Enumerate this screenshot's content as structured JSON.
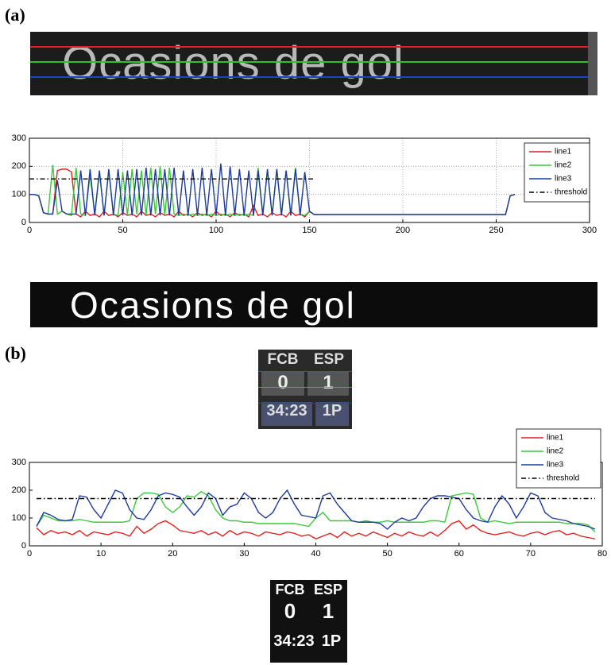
{
  "panels": {
    "label_a": "(a)",
    "label_b": "(b)",
    "image_a_top": "Ocasions de gol",
    "image_a_bottom": "Ocasions de gol",
    "score_top": {
      "team1": "FCB",
      "team2": "ESP",
      "score1": "0",
      "score2": "1",
      "time": "34:23",
      "period": "1P"
    },
    "score_bottom": {
      "team1": "FCB",
      "team2": "ESP",
      "score1": "0",
      "score2": "1",
      "time": "34:23",
      "period": "1P"
    }
  },
  "chart_data": [
    {
      "type": "line",
      "grid": true,
      "xlim": [
        0,
        300
      ],
      "xticks": [
        0,
        50,
        100,
        150,
        200,
        250,
        300
      ],
      "ylim": [
        0,
        300
      ],
      "yticks": [
        0,
        100,
        200,
        300
      ],
      "x": [
        0,
        2.5,
        5,
        7.5,
        10,
        12.5,
        15,
        17.5,
        20,
        22.5,
        25,
        27.5,
        30,
        32.5,
        35,
        37.5,
        40,
        42.5,
        45,
        47.5,
        50,
        52.5,
        55,
        57.5,
        60,
        62.5,
        65,
        67.5,
        70,
        72.5,
        75,
        77.5,
        80,
        82.5,
        85,
        87.5,
        90,
        92.5,
        95,
        97.5,
        100,
        102.5,
        105,
        107.5,
        110,
        112.5,
        115,
        117.5,
        120,
        122.5,
        125,
        127.5,
        130,
        132.5,
        135,
        137.5,
        140,
        142.5,
        145,
        147.5,
        150,
        152.5,
        155,
        200,
        255,
        257.5,
        260
      ],
      "series": [
        {
          "name": "line1",
          "color": "#e0201b",
          "values": [
            100,
            100,
            95,
            35,
            30,
            30,
            185,
            190,
            190,
            180,
            30,
            20,
            40,
            25,
            30,
            20,
            40,
            25,
            30,
            20,
            35,
            25,
            30,
            20,
            40,
            25,
            30,
            20,
            35,
            25,
            30,
            20,
            40,
            25,
            30,
            20,
            35,
            25,
            30,
            20,
            40,
            25,
            30,
            20,
            35,
            25,
            30,
            20,
            60,
            25,
            30,
            20,
            35,
            25,
            30,
            20,
            40,
            25,
            30,
            20,
            40,
            28,
            28,
            28,
            28,
            95,
            100
          ]
        },
        {
          "name": "line2",
          "color": "#3cc83c",
          "values": [
            100,
            100,
            95,
            35,
            30,
            205,
            30,
            40,
            30,
            25,
            195,
            30,
            25,
            170,
            30,
            180,
            25,
            185,
            30,
            25,
            180,
            25,
            190,
            30,
            185,
            25,
            195,
            30,
            200,
            25,
            195,
            30,
            25,
            30,
            25,
            30,
            25,
            30,
            25,
            30,
            25,
            30,
            25,
            30,
            25,
            30,
            25,
            30,
            25,
            195,
            30,
            185,
            25,
            190,
            30,
            185,
            25,
            195,
            30,
            25,
            40,
            28,
            28,
            28,
            28,
            95,
            100
          ]
        },
        {
          "name": "line3",
          "color": "#1f3a9e",
          "values": [
            100,
            100,
            95,
            35,
            30,
            30,
            150,
            40,
            30,
            30,
            30,
            185,
            25,
            190,
            25,
            185,
            25,
            190,
            25,
            190,
            25,
            185,
            25,
            190,
            25,
            195,
            25,
            190,
            25,
            190,
            25,
            195,
            25,
            185,
            25,
            190,
            25,
            195,
            25,
            190,
            25,
            210,
            25,
            200,
            25,
            190,
            25,
            185,
            25,
            185,
            25,
            190,
            25,
            190,
            25,
            185,
            25,
            190,
            25,
            180,
            40,
            28,
            28,
            28,
            28,
            95,
            100
          ]
        },
        {
          "name": "threshold",
          "color": "#000000",
          "dash": true,
          "x": [
            0,
            152.5
          ],
          "values": [
            155,
            155
          ]
        }
      ]
    },
    {
      "type": "line",
      "grid": false,
      "xlim": [
        0,
        80
      ],
      "xticks": [
        0,
        10,
        20,
        30,
        40,
        50,
        60,
        70,
        80
      ],
      "ylim": [
        0,
        300
      ],
      "yticks": [
        0,
        100,
        200,
        300
      ],
      "x": [
        1,
        2,
        3,
        4,
        5,
        6,
        7,
        8,
        9,
        10,
        11,
        12,
        13,
        14,
        15,
        16,
        17,
        18,
        19,
        20,
        21,
        22,
        23,
        24,
        25,
        26,
        27,
        28,
        29,
        30,
        31,
        32,
        33,
        34,
        35,
        36,
        37,
        38,
        39,
        40,
        41,
        42,
        43,
        44,
        45,
        46,
        47,
        48,
        49,
        50,
        51,
        52,
        53,
        54,
        55,
        56,
        57,
        58,
        59,
        60,
        61,
        62,
        63,
        64,
        65,
        66,
        67,
        68,
        69,
        70,
        71,
        72,
        73,
        74,
        75,
        76,
        77,
        78,
        79
      ],
      "series": [
        {
          "name": "line1",
          "color": "#e0201b",
          "values": [
            65,
            40,
            55,
            45,
            50,
            40,
            55,
            35,
            50,
            45,
            40,
            50,
            45,
            35,
            70,
            45,
            60,
            80,
            90,
            75,
            55,
            50,
            45,
            55,
            40,
            50,
            35,
            55,
            40,
            50,
            45,
            35,
            50,
            45,
            40,
            50,
            45,
            35,
            40,
            25,
            35,
            45,
            30,
            50,
            35,
            45,
            35,
            50,
            40,
            30,
            45,
            35,
            50,
            40,
            35,
            50,
            35,
            55,
            80,
            90,
            60,
            75,
            55,
            45,
            40,
            45,
            50,
            40,
            35,
            45,
            50,
            40,
            50,
            55,
            40,
            45,
            35,
            30,
            25
          ]
        },
        {
          "name": "line2",
          "color": "#3cc83c",
          "values": [
            70,
            110,
            100,
            90,
            90,
            90,
            95,
            90,
            85,
            85,
            85,
            85,
            85,
            90,
            170,
            190,
            190,
            185,
            140,
            120,
            140,
            180,
            175,
            195,
            180,
            130,
            100,
            90,
            90,
            85,
            85,
            80,
            80,
            80,
            80,
            80,
            80,
            75,
            70,
            100,
            120,
            90,
            90,
            90,
            90,
            85,
            90,
            85,
            85,
            90,
            85,
            85,
            85,
            85,
            85,
            90,
            90,
            85,
            180,
            185,
            190,
            185,
            100,
            85,
            90,
            85,
            80,
            85,
            85,
            85,
            85,
            85,
            85,
            85,
            80,
            80,
            80,
            75,
            50
          ]
        },
        {
          "name": "line3",
          "color": "#1f3a9e",
          "values": [
            70,
            120,
            110,
            95,
            90,
            95,
            180,
            175,
            130,
            100,
            150,
            200,
            190,
            130,
            100,
            95,
            130,
            180,
            190,
            185,
            175,
            140,
            110,
            140,
            190,
            170,
            110,
            140,
            150,
            190,
            170,
            120,
            100,
            120,
            170,
            200,
            150,
            110,
            105,
            100,
            180,
            190,
            150,
            120,
            90,
            85,
            85,
            85,
            80,
            60,
            85,
            100,
            90,
            100,
            140,
            170,
            180,
            180,
            175,
            170,
            130,
            100,
            90,
            85,
            140,
            180,
            150,
            100,
            140,
            190,
            180,
            120,
            100,
            95,
            90,
            80,
            75,
            70,
            60
          ]
        },
        {
          "name": "threshold",
          "color": "#000000",
          "dash": true,
          "x": [
            1,
            79
          ],
          "values": [
            170,
            170
          ]
        }
      ]
    }
  ]
}
